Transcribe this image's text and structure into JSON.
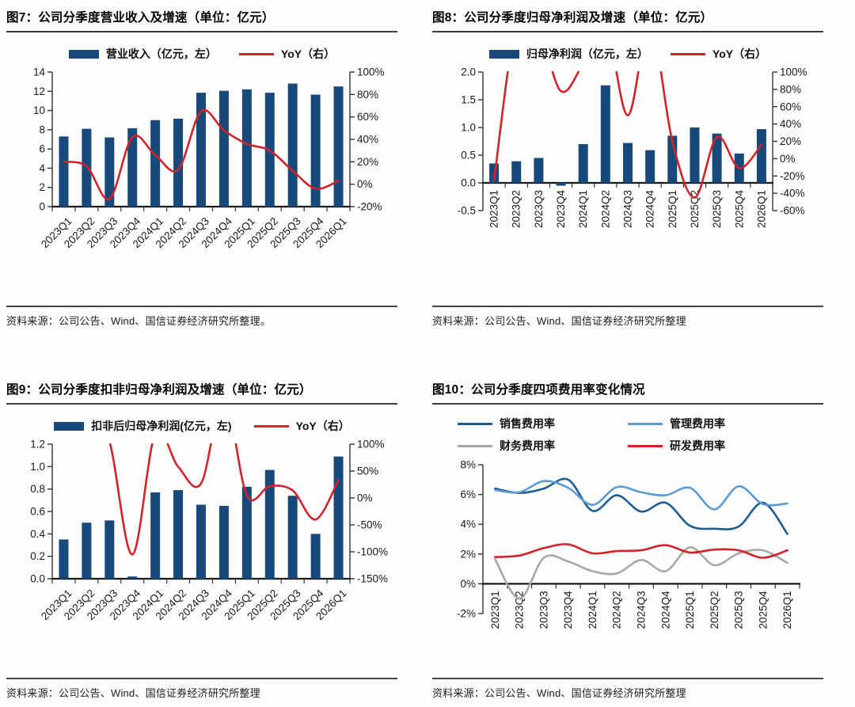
{
  "page": {
    "background": "#fdfdfd"
  },
  "colors": {
    "bar_navy": "#17497B",
    "line_red": "#D2232A",
    "line_dark_blue": "#1F5C8F",
    "line_light_blue": "#5B9BD5",
    "line_gray": "#A8A8A8",
    "axis_ink": "#333333"
  },
  "panels": [
    {
      "source": "资料来源：公司公告、Wind、国信证券经济研究所整理。"
    },
    {
      "source": "资料来源：公司公告、Wind、国信证券经济研究所整理"
    },
    {
      "source": "资料来源：公司公告、Wind、国信证券经济研究所整理"
    },
    {
      "source": "资料来源：公司公告、Wind、国信证券经济研究所整理"
    }
  ],
  "chart_data": [
    {
      "type": "bar+line",
      "title": "图7：公司分季度营业收入及增速（单位：亿元）",
      "categories": [
        "2023Q1",
        "2023Q2",
        "2023Q3",
        "2023Q4",
        "2024Q1",
        "2024Q2",
        "2024Q3",
        "2024Q4",
        "2025Q1",
        "2025Q2",
        "2025Q3",
        "2025Q4",
        "2026Q1"
      ],
      "series": [
        {
          "name": "营业收入（亿元，左）",
          "type": "bar",
          "axis": "left",
          "color": "#17497B",
          "values": [
            7.3,
            8.1,
            7.2,
            8.15,
            9.0,
            9.15,
            11.85,
            12.05,
            12.2,
            11.85,
            12.8,
            11.65,
            12.5
          ]
        },
        {
          "name": "YoY（右）",
          "type": "line",
          "axis": "right",
          "color": "#D2232A",
          "values": [
            20,
            16,
            -13,
            42,
            26,
            13,
            65,
            48,
            36,
            30,
            12,
            -4,
            3
          ]
        }
      ],
      "left_axis": {
        "min": 0,
        "max": 14,
        "step": 2,
        "format": "int"
      },
      "right_axis": {
        "min": -20,
        "max": 100,
        "step": 20,
        "format": "pct"
      },
      "x_label_rotation": -45,
      "legend_position": "top",
      "grid": false
    },
    {
      "type": "bar+line",
      "title": "图8：公司分季度归母净利润及增速（单位：亿元）",
      "categories": [
        "2023Q1",
        "2023Q2",
        "2023Q3",
        "2023Q4",
        "2024Q1",
        "2024Q2",
        "2024Q3",
        "2024Q4",
        "2025Q1",
        "2025Q2",
        "2025Q3",
        "2025Q4",
        "2026Q1"
      ],
      "series": [
        {
          "name": "归母净利润（亿元，左）",
          "type": "bar",
          "axis": "left",
          "color": "#17497B",
          "values": [
            0.35,
            0.39,
            0.45,
            -0.05,
            0.7,
            1.76,
            0.72,
            0.59,
            0.85,
            1.0,
            0.89,
            0.53,
            0.97
          ]
        },
        {
          "name": "YoY（右）",
          "type": "line",
          "axis": "right",
          "color": "#D2232A",
          "values": [
            -25,
            300,
            150,
            78,
            110,
            300,
            50,
            300,
            20,
            -45,
            25,
            -11,
            16
          ],
          "note": "values above 100% are clipped at the top of the plot"
        }
      ],
      "left_axis": {
        "min": -0.5,
        "max": 2.0,
        "step": 0.5,
        "format": "1dp"
      },
      "right_axis": {
        "min": -60,
        "max": 100,
        "step": 20,
        "format": "pct"
      },
      "x_label_rotation": -90,
      "legend_position": "top",
      "grid": false
    },
    {
      "type": "bar+line",
      "title": "图9：公司分季度扣非归母净利润及增速（单位：亿元）",
      "categories": [
        "2023Q1",
        "2023Q2",
        "2023Q3",
        "2023Q4",
        "2024Q1",
        "2024Q2",
        "2024Q3",
        "2024Q4",
        "2025Q1",
        "2025Q2",
        "2025Q3",
        "2025Q4",
        "2026Q1"
      ],
      "series": [
        {
          "name": "扣非后归母净利润(亿元，左)",
          "type": "bar",
          "axis": "left",
          "color": "#17497B",
          "values": [
            0.35,
            0.5,
            0.52,
            0.02,
            0.77,
            0.79,
            0.66,
            0.65,
            0.82,
            0.97,
            0.74,
            0.4,
            1.09
          ]
        },
        {
          "name": "YoY（右）",
          "type": "line",
          "axis": "right",
          "color": "#D2232A",
          "values": [
            200,
            250,
            105,
            -105,
            120,
            58,
            27,
            300,
            5,
            22,
            14,
            -40,
            33
          ],
          "note": "values above 100% are clipped at the top of the plot"
        }
      ],
      "left_axis": {
        "min": 0,
        "max": 1.2,
        "step": 0.2,
        "format": "1dp"
      },
      "right_axis": {
        "min": -150,
        "max": 100,
        "step": 50,
        "format": "pct"
      },
      "x_label_rotation": -45,
      "legend_position": "top",
      "grid": false
    },
    {
      "type": "line",
      "title": "图10：公司分季度四项费用率变化情况",
      "categories": [
        "2023Q1",
        "2023Q2",
        "2023Q3",
        "2023Q4",
        "2024Q1",
        "2024Q2",
        "2024Q3",
        "2024Q4",
        "2025Q1",
        "2025Q2",
        "2025Q3",
        "2025Q4",
        "2026Q1"
      ],
      "series": [
        {
          "name": "销售费用率",
          "type": "line",
          "axis": "left",
          "color": "#1F5C8F",
          "values": [
            6.4,
            6.1,
            6.4,
            7.0,
            4.9,
            5.95,
            4.85,
            5.45,
            3.9,
            3.7,
            3.85,
            5.45,
            3.35
          ]
        },
        {
          "name": "管理费用率",
          "type": "line",
          "axis": "left",
          "color": "#5B9BD5",
          "values": [
            6.3,
            6.15,
            6.9,
            6.45,
            5.3,
            6.5,
            6.15,
            5.95,
            6.45,
            5.0,
            6.55,
            5.35,
            5.4
          ]
        },
        {
          "name": "财务费用率",
          "type": "line",
          "axis": "left",
          "color": "#A8A8A8",
          "values": [
            1.65,
            -1.0,
            1.75,
            1.5,
            0.85,
            0.7,
            1.6,
            0.85,
            2.45,
            1.25,
            2.05,
            2.25,
            1.4
          ]
        },
        {
          "name": "研发费用率",
          "type": "line",
          "axis": "left",
          "color": "#D2232A",
          "values": [
            1.8,
            1.9,
            2.4,
            2.65,
            2.05,
            2.2,
            2.25,
            2.6,
            2.1,
            2.3,
            2.25,
            1.75,
            2.25
          ]
        }
      ],
      "left_axis": {
        "min": -2,
        "max": 8,
        "step": 2,
        "format": "pct"
      },
      "right_axis": null,
      "x_label_rotation": -90,
      "legend_position": "top",
      "grid": false
    }
  ]
}
